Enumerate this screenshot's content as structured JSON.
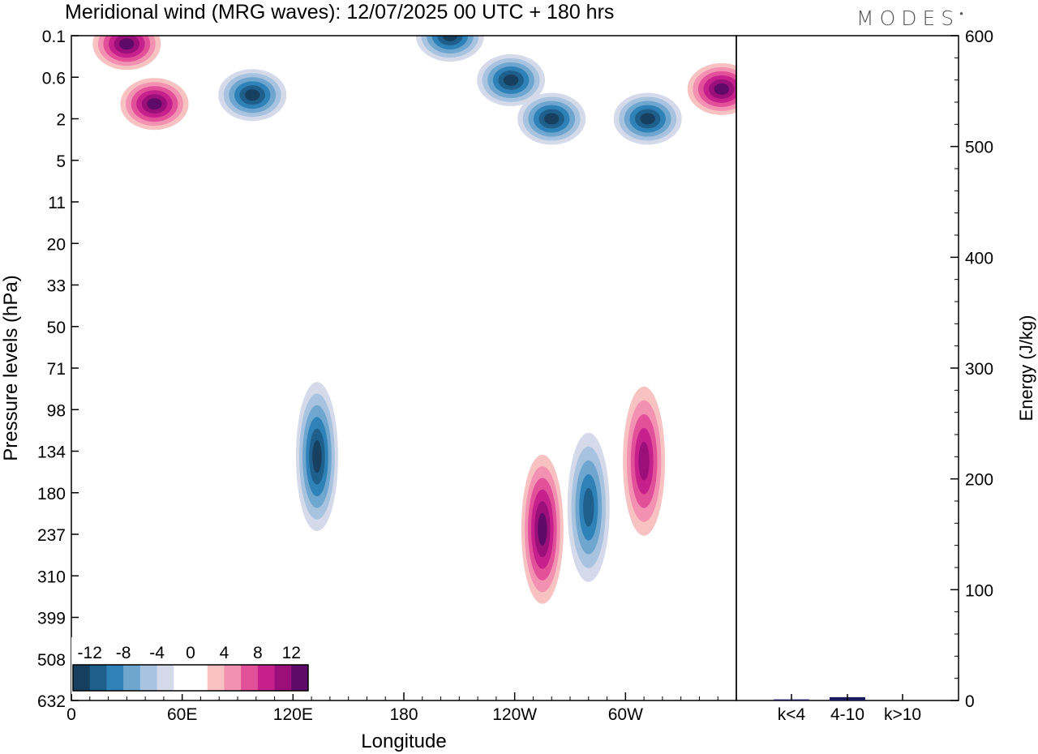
{
  "chart_data": [
    {
      "type": "heatmap",
      "title": "Meridional wind (MRG waves):  12/07/2025  00 UTC  + 180 hrs",
      "xlabel": "Longitude",
      "ylabel": "Pressure levels (hPa)",
      "x_ticks": [
        "0",
        "60E",
        "120E",
        "180",
        "120W",
        "60W"
      ],
      "y_ticks": [
        "0.1",
        "0.6",
        "2",
        "5",
        "11",
        "20",
        "33",
        "50",
        "71",
        "98",
        "134",
        "180",
        "237",
        "310",
        "399",
        "508",
        "632"
      ],
      "colorbar": {
        "labels": [
          "-12",
          "-8",
          "-4",
          "0",
          "4",
          "8",
          "12"
        ],
        "colors": [
          "#173f5f",
          "#1f5f8c",
          "#2f82b8",
          "#6ea6cf",
          "#a7c3df",
          "#d4dae9",
          "#ffffff",
          "#ffffff",
          "#f7c2c1",
          "#f391b3",
          "#e2509a",
          "#c6208c",
          "#9a0f7a",
          "#5e0a69"
        ]
      },
      "features": [
        {
          "sign": "positive",
          "longitude": 30,
          "level": 0.2,
          "amplitude": 14
        },
        {
          "sign": "positive",
          "longitude": 45,
          "level": 1.5,
          "amplitude": 15
        },
        {
          "sign": "negative",
          "longitude": 98,
          "level": 1.2,
          "amplitude": -11
        },
        {
          "sign": "negative",
          "longitude": 205,
          "level": 0.1,
          "amplitude": -12
        },
        {
          "sign": "negative",
          "longitude": 238,
          "level": 0.7,
          "amplitude": -12
        },
        {
          "sign": "negative",
          "longitude": 260,
          "level": 2,
          "amplitude": -12
        },
        {
          "sign": "negative",
          "longitude": 312,
          "level": 2,
          "amplitude": -12
        },
        {
          "sign": "positive",
          "longitude": 352,
          "level": 1,
          "amplitude": 12
        },
        {
          "sign": "negative",
          "longitude": 133,
          "level": 140,
          "amplitude": -13
        },
        {
          "sign": "positive",
          "longitude": 255,
          "level": 230,
          "amplitude": 14
        },
        {
          "sign": "negative",
          "longitude": 280,
          "level": 200,
          "amplitude": -10
        },
        {
          "sign": "positive",
          "longitude": 310,
          "level": 145,
          "amplitude": 10
        }
      ]
    },
    {
      "type": "bar",
      "ylabel": "Energy (J/kg)",
      "categories": [
        "k<4",
        "4-10",
        "k>10"
      ],
      "values": [
        1,
        3,
        0
      ],
      "ylim": [
        0,
        600
      ],
      "y_ticks": [
        "0",
        "100",
        "200",
        "300",
        "400",
        "500",
        "600"
      ],
      "bar_color": "#1a1a5e"
    }
  ],
  "logo": "MODES"
}
